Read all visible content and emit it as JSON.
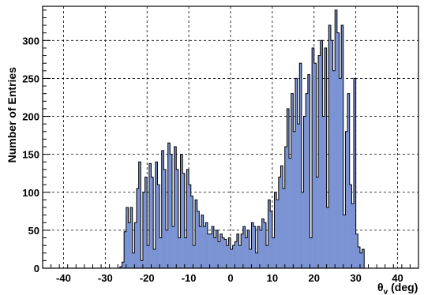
{
  "chart_data": {
    "type": "histogram",
    "title": "",
    "xlabel": "θv (deg)",
    "xlabel_parts": {
      "symbol": "θ",
      "subscript": "v",
      "unit": "(deg)"
    },
    "ylabel": "Number of Entries",
    "xlim": [
      -45,
      45
    ],
    "ylim": [
      0,
      345
    ],
    "bin_width": 0.5,
    "bin_start": -26.5,
    "x_ticks": [
      -40,
      -30,
      -20,
      -10,
      0,
      10,
      20,
      30,
      40
    ],
    "y_ticks": [
      0,
      50,
      100,
      150,
      200,
      250,
      300
    ],
    "grid": true,
    "fill_color": "#7b93d3",
    "line_color": "#000000",
    "values": [
      2,
      8,
      48,
      80,
      60,
      80,
      20,
      60,
      105,
      140,
      10,
      100,
      120,
      30,
      138,
      120,
      25,
      140,
      110,
      40,
      155,
      130,
      50,
      165,
      150,
      55,
      160,
      130,
      40,
      150,
      125,
      40,
      130,
      110,
      95,
      30,
      90,
      75,
      55,
      70,
      55,
      60,
      45,
      45,
      55,
      40,
      50,
      35,
      45,
      40,
      38,
      30,
      40,
      25,
      30,
      35,
      45,
      30,
      45,
      55,
      40,
      50,
      25,
      60,
      55,
      20,
      55,
      50,
      65,
      60,
      30,
      90,
      75,
      40,
      100,
      90,
      120,
      135,
      105,
      160,
      210,
      145,
      230,
      180,
      250,
      190,
      270,
      100,
      200,
      230,
      255,
      40,
      290,
      270,
      120,
      280,
      300,
      200,
      290,
      80,
      320,
      300,
      260,
      340,
      310,
      250,
      320,
      70,
      180,
      230,
      110,
      85,
      250,
      45,
      28,
      20,
      25
    ]
  }
}
